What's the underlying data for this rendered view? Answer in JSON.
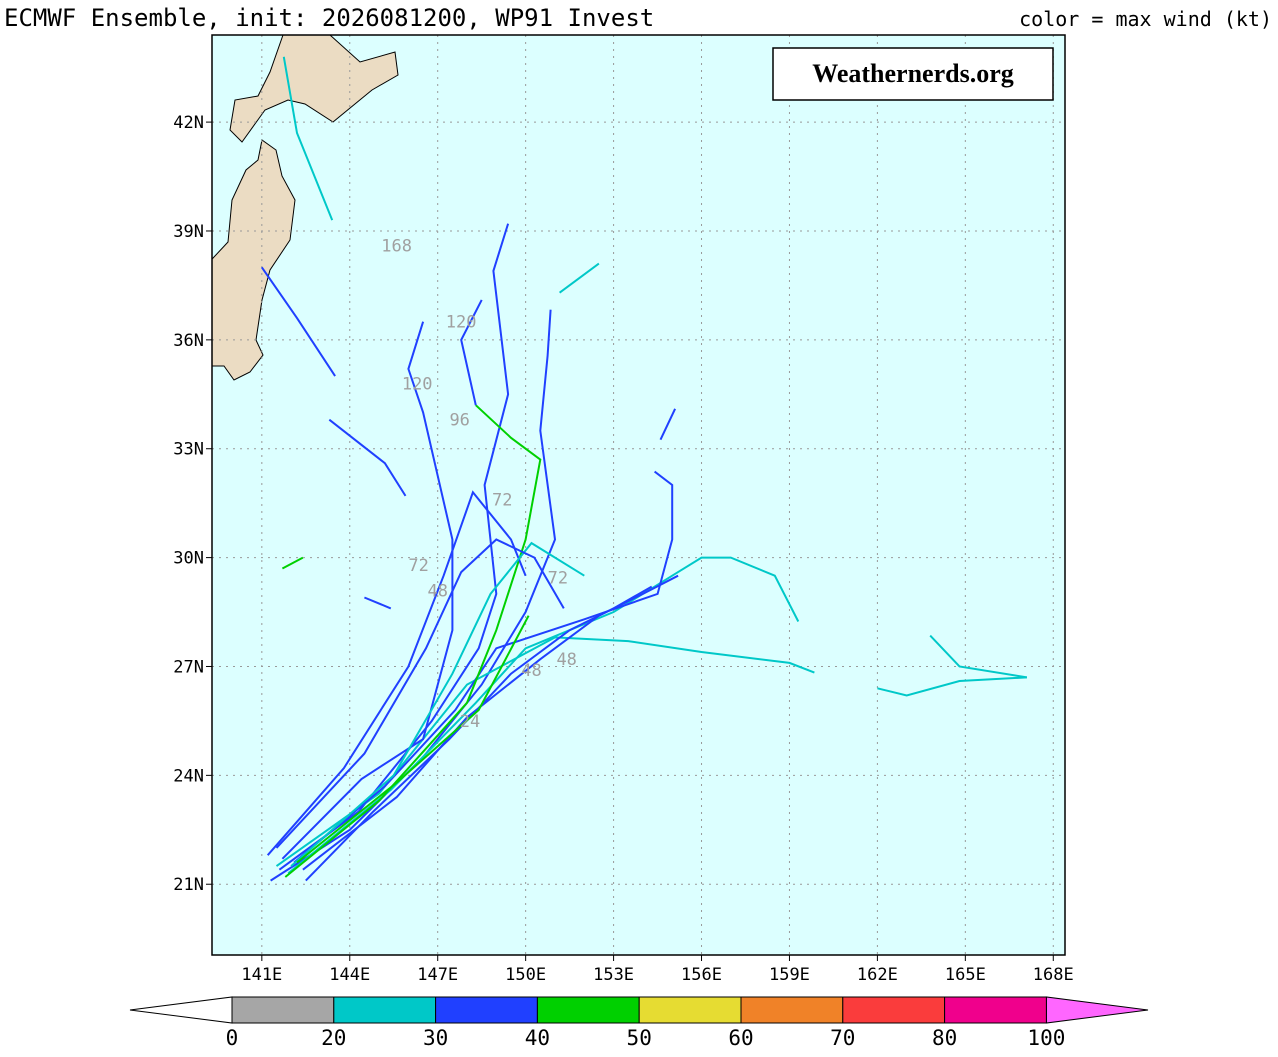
{
  "chart_data": {
    "type": "tracks",
    "title": "ECMWF Ensemble, init: 2026081200, WP91 Invest",
    "subtitle": "color = max wind (kt)",
    "watermark": "Weathernerds.org",
    "xlim": [
      139.3,
      168.4
    ],
    "ylim": [
      19.05,
      44.4
    ],
    "xticks": [
      {
        "value": 141,
        "label": "141E"
      },
      {
        "value": 144,
        "label": "144E"
      },
      {
        "value": 147,
        "label": "147E"
      },
      {
        "value": 150,
        "label": "150E"
      },
      {
        "value": 153,
        "label": "153E"
      },
      {
        "value": 156,
        "label": "156E"
      },
      {
        "value": 159,
        "label": "159E"
      },
      {
        "value": 162,
        "label": "162E"
      },
      {
        "value": 165,
        "label": "165E"
      },
      {
        "value": 168,
        "label": "168E"
      }
    ],
    "yticks": [
      {
        "value": 21,
        "label": "21N"
      },
      {
        "value": 24,
        "label": "24N"
      },
      {
        "value": 27,
        "label": "27N"
      },
      {
        "value": 30,
        "label": "30N"
      },
      {
        "value": 33,
        "label": "33N"
      },
      {
        "value": 36,
        "label": "36N"
      },
      {
        "value": 39,
        "label": "39N"
      },
      {
        "value": 42,
        "label": "42N"
      }
    ],
    "grid": true,
    "colorbar": {
      "bounds": [
        0,
        20,
        30,
        40,
        50,
        60,
        70,
        80,
        100
      ],
      "colors": [
        "#a6a6a6",
        "#00c8c8",
        "#2040ff",
        "#00d000",
        "#e6dc32",
        "#f08228",
        "#fa3c3c",
        "#f0008c"
      ],
      "under_color": "#ffffff",
      "over_color": "#ff66ff"
    },
    "series": [
      {
        "color": "#2040ff",
        "lon": [
          141.3,
          144,
          146.5,
          148.5,
          150,
          151,
          150.5,
          150.75,
          150.85
        ],
        "lat": [
          21.1,
          22.5,
          24.5,
          26.5,
          28.5,
          30.5,
          33.5,
          35.56,
          36.83
        ]
      },
      {
        "color": "#2040ff",
        "lon": [
          141.6,
          144.3,
          146.8,
          148.4,
          149,
          148.6,
          149.4,
          148.9,
          149.4
        ],
        "lat": [
          21.4,
          23,
          25.5,
          27.5,
          29,
          32,
          34.5,
          37.9,
          39.2
        ]
      },
      {
        "color": "#00c8c8",
        "lon": [
          141.5,
          145,
          148,
          151,
          153.5,
          156,
          159,
          159.85
        ],
        "lat": [
          21.5,
          23.5,
          26.5,
          27.8,
          27.7,
          27.4,
          27.1,
          26.83
        ]
      },
      {
        "color": "#00c8c8",
        "lon": [
          141.9,
          145.4,
          148.3,
          150,
          153,
          155,
          156,
          157,
          158.5,
          159.3
        ],
        "lat": [
          21.3,
          23.6,
          26,
          27.5,
          28.5,
          29.5,
          30,
          30,
          29.5,
          28.24
        ]
      },
      {
        "color": "#2040ff",
        "lon": [
          142.1,
          145.2,
          147.6,
          149,
          152,
          154.5,
          155,
          155,
          154.4
        ],
        "lat": [
          21.6,
          23.7,
          25.8,
          27.5,
          28.3,
          29,
          30.5,
          32,
          32.37
        ]
      },
      {
        "color": "#00d000",
        "lon": [
          141.8,
          145,
          148,
          149,
          150,
          150.5,
          149.5,
          148.3
        ],
        "lat": [
          21.2,
          23.3,
          26,
          28,
          30.5,
          32.7,
          33.3,
          34.2
        ]
      },
      {
        "color": "#2040ff",
        "lon": [
          148.3,
          147.8,
          148.5
        ],
        "lat": [
          34.2,
          36,
          37.1
        ]
      },
      {
        "color": "#2040ff",
        "lon": [
          143.3,
          145.2,
          145.9
        ],
        "lat": [
          33.8,
          32.6,
          31.7
        ]
      },
      {
        "color": "#2040ff",
        "lon": [
          141,
          142.2,
          143.5
        ],
        "lat": [
          38,
          36.6,
          35
        ]
      },
      {
        "color": "#00c8c8",
        "lon": [
          141.75,
          142.2,
          143.4
        ],
        "lat": [
          43.8,
          41.7,
          39.3
        ]
      },
      {
        "color": "#00c8c8",
        "lon": [
          163.8,
          164.8,
          167.1
        ],
        "lat": [
          27.85,
          27,
          26.7
        ]
      },
      {
        "color": "#00c8c8",
        "lon": [
          162,
          163,
          164.8,
          167.1
        ],
        "lat": [
          26.4,
          26.2,
          26.6,
          26.7
        ]
      },
      {
        "color": "#2040ff",
        "lon": [
          141.7,
          144.4,
          146.5,
          147.5,
          147.5,
          146.5,
          146,
          146.5
        ],
        "lat": [
          21.7,
          23.9,
          25,
          28,
          30.5,
          34,
          35.2,
          36.5
        ]
      },
      {
        "color": "#00c8c8",
        "lon": [
          151.16,
          152.5
        ],
        "lat": [
          37.3,
          38.1
        ]
      },
      {
        "color": "#2040ff",
        "lon": [
          144.5,
          145.4
        ],
        "lat": [
          28.9,
          28.6
        ]
      },
      {
        "color": "#00d000",
        "lon": [
          141.7,
          142.4
        ],
        "lat": [
          29.7,
          30
        ]
      },
      {
        "color": "#2040ff",
        "lon": [
          154.6,
          155.1
        ],
        "lat": [
          33.25,
          34.1
        ]
      },
      {
        "color": "#2040ff",
        "lon": [
          141.2,
          143.8,
          146,
          147.2,
          148.2,
          149.5,
          150
        ],
        "lat": [
          21.8,
          24.2,
          27,
          29.5,
          31.8,
          30.5,
          29.5
        ]
      },
      {
        "color": "#2040ff",
        "lon": [
          142.4,
          145.6,
          148,
          150.5,
          152.5,
          154,
          155.2
        ],
        "lat": [
          21.4,
          23.4,
          25.6,
          27.2,
          28.4,
          29,
          29.5
        ]
      },
      {
        "color": "#00c8c8",
        "lon": [
          142,
          145.5,
          147.5,
          148.8,
          150.2,
          152
        ],
        "lat": [
          21.5,
          24,
          26.8,
          29,
          30.4,
          29.5
        ]
      },
      {
        "color": "#2040ff",
        "lon": [
          141.5,
          144.5,
          146.6,
          147.8,
          149,
          150.3,
          151.3
        ],
        "lat": [
          22,
          24.6,
          27.5,
          29.6,
          30.5,
          30,
          28.6
        ]
      },
      {
        "color": "#2040ff",
        "lon": [
          142.5,
          144.8,
          147.4,
          149.5,
          151.5,
          153,
          154.3
        ],
        "lat": [
          21.1,
          23,
          25,
          26.8,
          28,
          28.6,
          29.2
        ]
      },
      {
        "color": "#00d000",
        "lon": [
          142.2,
          145.6,
          148.4,
          150.1
        ],
        "lat": [
          21.6,
          23.8,
          25.8,
          28.4
        ]
      }
    ],
    "annotations": [
      {
        "text": "168",
        "lon": 145.6,
        "lat": 38.6
      },
      {
        "text": "120",
        "lon": 147.8,
        "lat": 36.5
      },
      {
        "text": "120",
        "lon": 146.3,
        "lat": 34.8
      },
      {
        "text": "96",
        "lon": 147.75,
        "lat": 33.8
      },
      {
        "text": "72",
        "lon": 146.35,
        "lat": 29.8
      },
      {
        "text": "72",
        "lon": 149.2,
        "lat": 31.6
      },
      {
        "text": "72",
        "lon": 151.1,
        "lat": 29.45
      },
      {
        "text": "48",
        "lon": 147,
        "lat": 29.1
      },
      {
        "text": "48",
        "lon": 151.4,
        "lat": 27.2
      },
      {
        "text": "48",
        "lon": 150.2,
        "lat": 26.9
      },
      {
        "text": "24",
        "lon": 148.1,
        "lat": 25.5
      }
    ]
  }
}
